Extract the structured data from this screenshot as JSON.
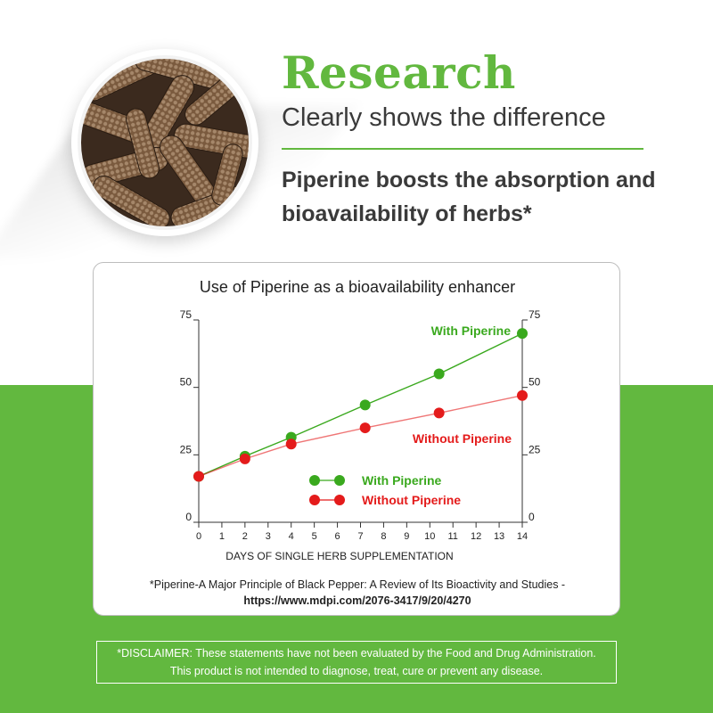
{
  "header": {
    "title": "Research",
    "subtitle": "Clearly shows the difference",
    "claim": "Piperine boosts the absorption and bioavailability of herbs*"
  },
  "colors": {
    "brand_green": "#62b83f",
    "with_piperine": "#3aa91e",
    "without_piperine": "#e41b1b",
    "text_dark": "#3a3a3a"
  },
  "image": {
    "name": "long-pepper-bowl"
  },
  "chart_data": {
    "type": "line",
    "title": "Use of Piperine as a bioavailability enhancer",
    "xlabel": "DAYS OF SINGLE HERB SUPPLEMENTATION",
    "ylabel": "",
    "xlim": [
      0,
      14
    ],
    "ylim": [
      0,
      75
    ],
    "x_ticks": [
      0,
      1,
      2,
      3,
      4,
      5,
      6,
      7,
      8,
      9,
      10,
      11,
      12,
      13,
      14
    ],
    "y_ticks": [
      0,
      25,
      50,
      75
    ],
    "right_y_ticks": [
      0,
      25,
      50,
      75
    ],
    "grid": false,
    "series": [
      {
        "name": "With Piperine",
        "color": "#3aa91e",
        "x": [
          0,
          2,
          4,
          7.2,
          10.4,
          14
        ],
        "y": [
          17,
          24.5,
          31.5,
          43.5,
          55,
          70
        ]
      },
      {
        "name": "Without Piperine",
        "color": "#e41b1b",
        "x": [
          0,
          2,
          4,
          7.2,
          10.4,
          14
        ],
        "y": [
          17,
          23.5,
          29,
          35,
          40.5,
          47
        ]
      }
    ],
    "annotations": [
      {
        "text": "With Piperine",
        "color": "#3aa91e"
      },
      {
        "text": "Without Piperine",
        "color": "#e41b1b"
      }
    ],
    "legend": {
      "placement": "center",
      "entries": [
        "With Piperine",
        "Without Piperine"
      ]
    }
  },
  "citation": {
    "text": "*Piperine-A Major Principle of Black Pepper: A Review of Its Bioactivity and Studies -",
    "url": "https://www.mdpi.com/2076-3417/9/20/4270"
  },
  "disclaimer": {
    "line1": "*DISCLAIMER: These statements have not been evaluated by the Food and Drug Administration.",
    "line2": "This product is not intended to diagnose, treat, cure or prevent any disease."
  }
}
